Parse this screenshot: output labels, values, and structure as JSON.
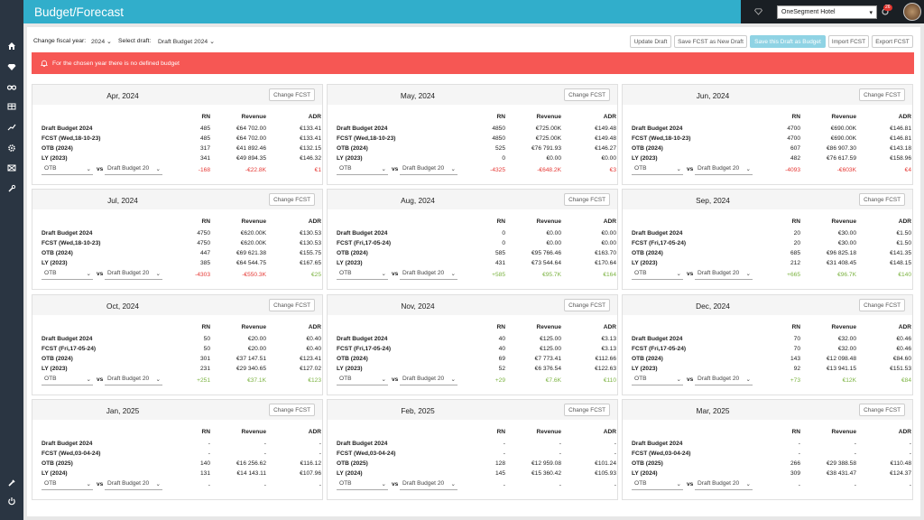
{
  "app": {
    "title": "Budget/Forecast"
  },
  "hotel": {
    "selected": "OneSegment Hotel",
    "badge": "26"
  },
  "controls": {
    "fiscal_label": "Change fiscal year:",
    "fiscal_value": "2024",
    "draft_label": "Select draft:",
    "draft_value": "Draft Budget 2024"
  },
  "buttons": {
    "update": "Update Draft",
    "save_new": "Save FCST as New Draft",
    "save_budget": "Save this Draft as Budget",
    "import": "Import FCST",
    "export": "Export FCST"
  },
  "alert": {
    "message": "For the chosen year there is no defined budget"
  },
  "headers": {
    "rn": "RN",
    "revenue": "Revenue",
    "adr": "ADR",
    "change": "Change FCST",
    "vs": "vs",
    "otb": "OTB",
    "draft": "Draft Budget 20"
  },
  "cards": [
    {
      "month": "Apr, 2024",
      "rows": [
        {
          "label": "Draft Budget 2024",
          "rn": "485",
          "rev": "€64 702.00",
          "adr": "€133.41"
        },
        {
          "label": "FCST (Wed,18-10-23)",
          "rn": "485",
          "rev": "€64 702.00",
          "adr": "€133.41"
        },
        {
          "label": "OTB (2024)",
          "rn": "317",
          "rev": "€41 892.46",
          "adr": "€132.15"
        },
        {
          "label": "LY (2023)",
          "rn": "341",
          "rev": "€49 894.35",
          "adr": "€146.32"
        }
      ],
      "diff": {
        "rn": "-168",
        "rev": "-€22.8K",
        "adr": "€1",
        "cls": "neg"
      }
    },
    {
      "month": "May, 2024",
      "rows": [
        {
          "label": "Draft Budget 2024",
          "rn": "4850",
          "rev": "€725.00K",
          "adr": "€149.48"
        },
        {
          "label": "FCST (Wed,18-10-23)",
          "rn": "4850",
          "rev": "€725.00K",
          "adr": "€149.48"
        },
        {
          "label": "OTB (2024)",
          "rn": "525",
          "rev": "€76 791.93",
          "adr": "€146.27"
        },
        {
          "label": "LY (2023)",
          "rn": "0",
          "rev": "€0.00",
          "adr": "€0.00"
        }
      ],
      "diff": {
        "rn": "-4325",
        "rev": "-€648.2K",
        "adr": "€3",
        "cls": "neg"
      }
    },
    {
      "month": "Jun, 2024",
      "rows": [
        {
          "label": "Draft Budget 2024",
          "rn": "4700",
          "rev": "€690.00K",
          "adr": "€146.81"
        },
        {
          "label": "FCST (Wed,18-10-23)",
          "rn": "4700",
          "rev": "€690.00K",
          "adr": "€146.81"
        },
        {
          "label": "OTB (2024)",
          "rn": "607",
          "rev": "€86 907.30",
          "adr": "€143.18"
        },
        {
          "label": "LY (2023)",
          "rn": "482",
          "rev": "€76 617.59",
          "adr": "€158.96"
        }
      ],
      "diff": {
        "rn": "-4093",
        "rev": "-€603K",
        "adr": "€4",
        "cls": "neg"
      }
    },
    {
      "month": "Jul, 2024",
      "rows": [
        {
          "label": "Draft Budget 2024",
          "rn": "4750",
          "rev": "€620.00K",
          "adr": "€130.53"
        },
        {
          "label": "FCST (Wed,18-10-23)",
          "rn": "4750",
          "rev": "€620.00K",
          "adr": "€130.53"
        },
        {
          "label": "OTB (2024)",
          "rn": "447",
          "rev": "€69 621.38",
          "adr": "€155.75"
        },
        {
          "label": "LY (2023)",
          "rn": "385",
          "rev": "€64 544.75",
          "adr": "€167.65"
        }
      ],
      "diff": {
        "rn": "-4303",
        "rev": "-€550.3K",
        "adr": "€25",
        "cls": "neg",
        "adr_cls": "pos"
      }
    },
    {
      "month": "Aug, 2024",
      "rows": [
        {
          "label": "Draft Budget 2024",
          "rn": "0",
          "rev": "€0.00",
          "adr": "€0.00"
        },
        {
          "label": "FCST (Fri,17-05-24)",
          "rn": "0",
          "rev": "€0.00",
          "adr": "€0.00"
        },
        {
          "label": "OTB (2024)",
          "rn": "585",
          "rev": "€95 766.46",
          "adr": "€163.70"
        },
        {
          "label": "LY (2023)",
          "rn": "431",
          "rev": "€73 544.64",
          "adr": "€170.64"
        }
      ],
      "diff": {
        "rn": "+585",
        "rev": "€95.7K",
        "adr": "€164",
        "cls": "pos"
      }
    },
    {
      "month": "Sep, 2024",
      "rows": [
        {
          "label": "Draft Budget 2024",
          "rn": "20",
          "rev": "€30.00",
          "adr": "€1.50"
        },
        {
          "label": "FCST (Fri,17-05-24)",
          "rn": "20",
          "rev": "€30.00",
          "adr": "€1.50"
        },
        {
          "label": "OTB (2024)",
          "rn": "685",
          "rev": "€96 825.18",
          "adr": "€141.35"
        },
        {
          "label": "LY (2023)",
          "rn": "212",
          "rev": "€31 408.45",
          "adr": "€148.15"
        }
      ],
      "diff": {
        "rn": "+665",
        "rev": "€96.7K",
        "adr": "€140",
        "cls": "pos"
      }
    },
    {
      "month": "Oct, 2024",
      "rows": [
        {
          "label": "Draft Budget 2024",
          "rn": "50",
          "rev": "€20.00",
          "adr": "€0.40"
        },
        {
          "label": "FCST (Fri,17-05-24)",
          "rn": "50",
          "rev": "€20.00",
          "adr": "€0.40"
        },
        {
          "label": "OTB (2024)",
          "rn": "301",
          "rev": "€37 147.51",
          "adr": "€123.41"
        },
        {
          "label": "LY (2023)",
          "rn": "231",
          "rev": "€29 340.65",
          "adr": "€127.02"
        }
      ],
      "diff": {
        "rn": "+251",
        "rev": "€37.1K",
        "adr": "€123",
        "cls": "pos"
      }
    },
    {
      "month": "Nov, 2024",
      "rows": [
        {
          "label": "Draft Budget 2024",
          "rn": "40",
          "rev": "€125.00",
          "adr": "€3.13"
        },
        {
          "label": "FCST (Fri,17-05-24)",
          "rn": "40",
          "rev": "€125.00",
          "adr": "€3.13"
        },
        {
          "label": "OTB (2024)",
          "rn": "69",
          "rev": "€7 773.41",
          "adr": "€112.66"
        },
        {
          "label": "LY (2023)",
          "rn": "52",
          "rev": "€6 376.54",
          "adr": "€122.63"
        }
      ],
      "diff": {
        "rn": "+29",
        "rev": "€7.6K",
        "adr": "€110",
        "cls": "pos"
      }
    },
    {
      "month": "Dec, 2024",
      "rows": [
        {
          "label": "Draft Budget 2024",
          "rn": "70",
          "rev": "€32.00",
          "adr": "€0.46"
        },
        {
          "label": "FCST (Fri,17-05-24)",
          "rn": "70",
          "rev": "€32.00",
          "adr": "€0.46"
        },
        {
          "label": "OTB (2024)",
          "rn": "143",
          "rev": "€12 098.48",
          "adr": "€84.60"
        },
        {
          "label": "LY (2023)",
          "rn": "92",
          "rev": "€13 941.15",
          "adr": "€151.53"
        }
      ],
      "diff": {
        "rn": "+73",
        "rev": "€12K",
        "adr": "€84",
        "cls": "pos"
      }
    },
    {
      "month": "Jan, 2025",
      "rows": [
        {
          "label": "Draft Budget 2024",
          "rn": "-",
          "rev": "-",
          "adr": "-"
        },
        {
          "label": "FCST (Wed,03-04-24)",
          "rn": "-",
          "rev": "-",
          "adr": "-"
        },
        {
          "label": "OTB (2025)",
          "rn": "140",
          "rev": "€16 256.62",
          "adr": "€116.12"
        },
        {
          "label": "LY (2024)",
          "rn": "131",
          "rev": "€14 143.11",
          "adr": "€107.96"
        }
      ],
      "diff": {
        "rn": "-",
        "rev": "-",
        "adr": "-",
        "cls": ""
      }
    },
    {
      "month": "Feb, 2025",
      "rows": [
        {
          "label": "Draft Budget 2024",
          "rn": "-",
          "rev": "-",
          "adr": "-"
        },
        {
          "label": "FCST (Wed,03-04-24)",
          "rn": "-",
          "rev": "-",
          "adr": "-"
        },
        {
          "label": "OTB (2025)",
          "rn": "128",
          "rev": "€12 959.08",
          "adr": "€101.24"
        },
        {
          "label": "LY (2024)",
          "rn": "145",
          "rev": "€15 360.42",
          "adr": "€105.93"
        }
      ],
      "diff": {
        "rn": "-",
        "rev": "-",
        "adr": "-",
        "cls": ""
      }
    },
    {
      "month": "Mar, 2025",
      "rows": [
        {
          "label": "Draft Budget 2024",
          "rn": "-",
          "rev": "-",
          "adr": "-"
        },
        {
          "label": "FCST (Wed,03-04-24)",
          "rn": "-",
          "rev": "-",
          "adr": "-"
        },
        {
          "label": "OTB (2025)",
          "rn": "266",
          "rev": "€29 388.58",
          "adr": "€110.48"
        },
        {
          "label": "LY (2024)",
          "rn": "309",
          "rev": "€38 431.47",
          "adr": "€124.37"
        }
      ],
      "diff": {
        "rn": "-",
        "rev": "-",
        "adr": "-",
        "cls": ""
      }
    }
  ]
}
